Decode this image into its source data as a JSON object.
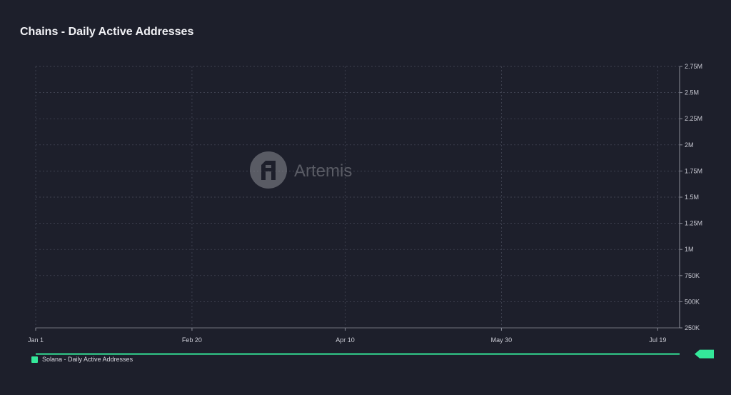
{
  "header": {
    "title": "Chains - Daily Active Addresses"
  },
  "watermark": {
    "text": "Artemis"
  },
  "colors": {
    "background": "#1d1f2b",
    "series": "#34e89a",
    "grid": "#4a4d5c",
    "axis_text": "#c9cad3"
  },
  "legend": {
    "label": "Solana - Daily Active Addresses"
  },
  "chart_data": {
    "type": "line",
    "title": "Chains - Daily Active Addresses",
    "xlabel": "",
    "ylabel": "",
    "ylim": [
      250000,
      2750000
    ],
    "y_axis_side": "right",
    "y_ticks": [
      {
        "value": 250000,
        "label": "250K"
      },
      {
        "value": 500000,
        "label": "500K"
      },
      {
        "value": 750000,
        "label": "750K"
      },
      {
        "value": 1000000,
        "label": "1M"
      },
      {
        "value": 1250000,
        "label": "1.25M"
      },
      {
        "value": 1500000,
        "label": "1.5M"
      },
      {
        "value": 1750000,
        "label": "1.75M"
      },
      {
        "value": 2000000,
        "label": "2M"
      },
      {
        "value": 2250000,
        "label": "2.25M"
      },
      {
        "value": 2500000,
        "label": "2.5M"
      },
      {
        "value": 2750000,
        "label": "2.75M"
      }
    ],
    "x_ticks": [
      {
        "date": "2023-01-01",
        "label": "Jan 1"
      },
      {
        "date": "2023-02-20",
        "label": "Feb 20"
      },
      {
        "date": "2023-04-10",
        "label": "Apr 10"
      },
      {
        "date": "2023-05-30",
        "label": "May 30"
      },
      {
        "date": "2023-07-19",
        "label": "Jul 19"
      }
    ],
    "last_value_marker": true,
    "grid": true,
    "legend_position": "bottom-left",
    "series": [
      {
        "name": "Solana - Daily Active Addresses",
        "color": "#34e89a",
        "x": [
          "2023-01-01",
          "2023-01-08",
          "2023-01-15",
          "2023-01-22",
          "2023-01-29",
          "2023-02-05",
          "2023-02-12",
          "2023-02-19",
          "2023-02-26",
          "2023-03-05",
          "2023-03-12",
          "2023-03-19",
          "2023-03-26",
          "2023-04-02",
          "2023-04-09",
          "2023-04-16",
          "2023-04-23",
          "2023-04-30",
          "2023-05-07",
          "2023-05-14",
          "2023-05-21",
          "2023-05-28",
          "2023-06-04",
          "2023-06-11",
          "2023-06-18",
          "2023-06-25",
          "2023-07-02",
          "2023-07-09",
          "2023-07-16",
          "2023-07-23",
          "2023-07-26"
        ],
        "values": [
          1.0,
          2.0,
          3.0,
          4.0,
          5.0,
          6.0,
          7.0,
          8.0,
          9.0,
          10.0,
          11.0,
          12.0,
          13.0,
          14.0,
          15.0,
          16.0,
          17.0,
          18.0,
          19.0,
          20.0,
          21.0,
          22.0,
          23.0,
          24.0,
          25.0,
          26.0,
          27.0,
          28.0,
          29.0,
          30.0,
          31.0
        ]
      }
    ]
  }
}
